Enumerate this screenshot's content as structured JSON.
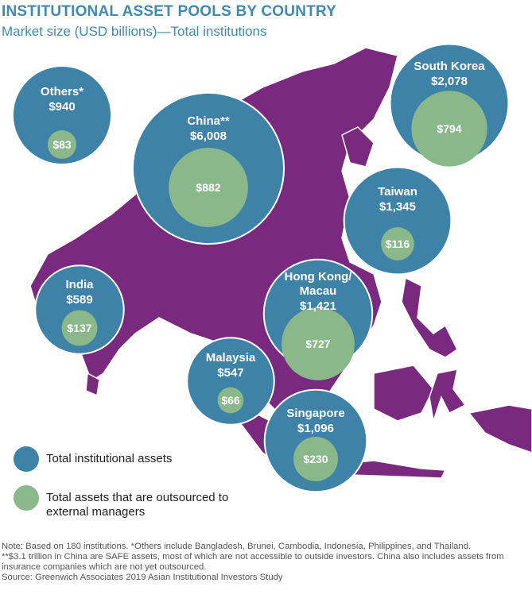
{
  "chart_data": {
    "type": "bubble",
    "title": "INSTITUTIONAL ASSET POOLS BY COUNTRY",
    "subtitle": "Market size (USD billions)—Total institutions",
    "categories": [
      "Others*",
      "China**",
      "South Korea",
      "Taiwan",
      "India",
      "Hong Kong/ Macau",
      "Malaysia",
      "Singapore"
    ],
    "series": [
      {
        "name": "Total institutional assets",
        "color": "#3f82a8",
        "values": [
          940,
          6008,
          2078,
          1345,
          589,
          1421,
          547,
          1096
        ],
        "value_labels": [
          "$940",
          "$6,008",
          "$2,078",
          "$1,345",
          "$589",
          "$1,421",
          "$547",
          "$1,096"
        ]
      },
      {
        "name": "Total assets that are outsourced to external managers",
        "color": "#8bb88a",
        "values": [
          83,
          882,
          794,
          116,
          137,
          727,
          66,
          230
        ],
        "value_labels": [
          "$83",
          "$882",
          "$794",
          "$116",
          "$137",
          "$727",
          "$66",
          "$230"
        ]
      }
    ],
    "notes": [
      "Note: Based on 180 institutions. *Others include Bangladesh, Brunei, Cambodia, Indonesia, Philippines, and Thailand.",
      "**$3.1 trillion in China are SAFE assets, most of which are not accessible to outside investors. China also includes assets from insurance companies which are not yet outsourced.",
      "Source: Greenwich Associates 2019 Asian Institutional Investors Study"
    ]
  }
}
